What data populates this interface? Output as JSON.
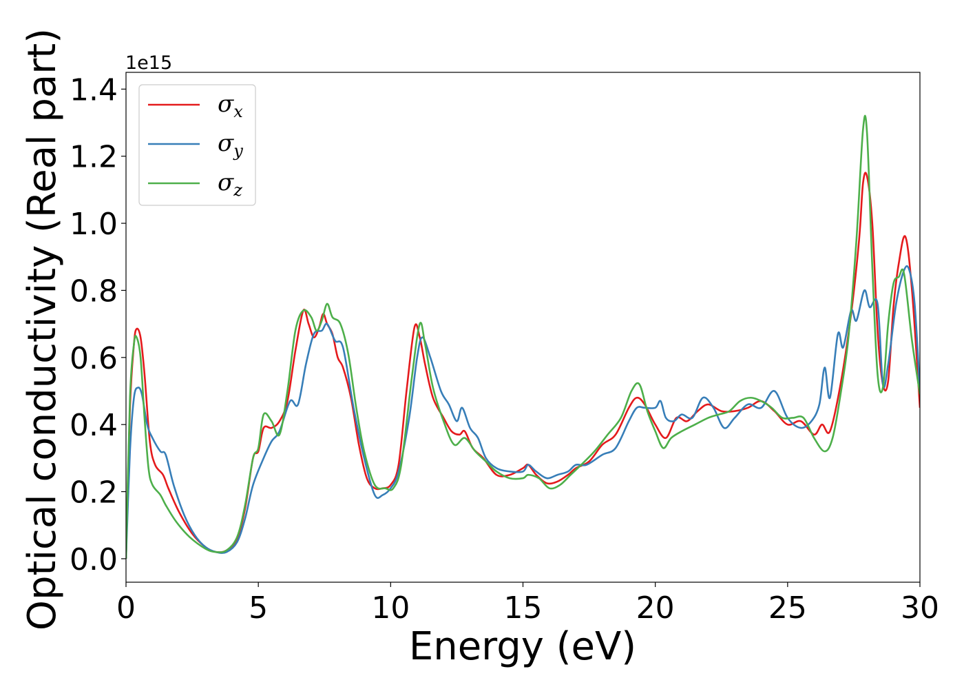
{
  "chart_data": {
    "type": "line",
    "title": "",
    "xlabel": "Energy (eV)",
    "ylabel": "Optical conductivity (Real part)",
    "y_offset_label": "1e15",
    "xlim": [
      0,
      30
    ],
    "ylim": [
      -0.07,
      1.45
    ],
    "grid": false,
    "legend_position": "top-left",
    "x_ticks": [
      {
        "value": 0,
        "label": "0"
      },
      {
        "value": 5,
        "label": "5"
      },
      {
        "value": 10,
        "label": "10"
      },
      {
        "value": 15,
        "label": "15"
      },
      {
        "value": 20,
        "label": "20"
      },
      {
        "value": 25,
        "label": "25"
      },
      {
        "value": 30,
        "label": "30"
      }
    ],
    "y_ticks": [
      {
        "value": 0.0,
        "label": "0.0"
      },
      {
        "value": 0.2,
        "label": "0.2"
      },
      {
        "value": 0.4,
        "label": "0.4"
      },
      {
        "value": 0.6,
        "label": "0.6"
      },
      {
        "value": 0.8,
        "label": "0.8"
      },
      {
        "value": 1.0,
        "label": "1.0"
      },
      {
        "value": 1.2,
        "label": "1.2"
      },
      {
        "value": 1.4,
        "label": "1.4"
      }
    ],
    "series": [
      {
        "name": "σ",
        "subscript": "x",
        "color": "#e41a1c",
        "x": [
          0,
          0.15,
          0.3,
          0.4,
          0.55,
          0.7,
          0.9,
          1.1,
          1.4,
          1.6,
          2.0,
          2.5,
          3.0,
          3.4,
          3.8,
          4.2,
          4.5,
          4.8,
          5.0,
          5.2,
          5.5,
          5.8,
          6.1,
          6.4,
          6.7,
          6.9,
          7.1,
          7.3,
          7.45,
          7.6,
          7.8,
          8.0,
          8.2,
          8.5,
          8.8,
          9.1,
          9.4,
          9.7,
          10.0,
          10.3,
          10.6,
          10.9,
          11.1,
          11.3,
          11.6,
          12.0,
          12.3,
          12.6,
          12.8,
          13.1,
          13.5,
          14.0,
          14.5,
          15.0,
          15.2,
          15.5,
          15.9,
          16.3,
          16.7,
          17.0,
          17.5,
          18.0,
          18.5,
          19.0,
          19.3,
          19.6,
          20.0,
          20.4,
          20.8,
          21.2,
          21.6,
          22.0,
          22.5,
          23.0,
          23.5,
          24.0,
          24.5,
          25.0,
          25.5,
          26.0,
          26.3,
          26.6,
          27.0,
          27.4,
          27.7,
          27.85,
          28.0,
          28.2,
          28.4,
          28.6,
          28.8,
          29.0,
          29.2,
          29.45,
          29.7,
          30.0
        ],
        "y": [
          0.0,
          0.45,
          0.64,
          0.685,
          0.66,
          0.55,
          0.35,
          0.28,
          0.25,
          0.21,
          0.14,
          0.075,
          0.035,
          0.02,
          0.025,
          0.06,
          0.15,
          0.3,
          0.32,
          0.39,
          0.39,
          0.41,
          0.47,
          0.62,
          0.74,
          0.7,
          0.66,
          0.69,
          0.73,
          0.7,
          0.67,
          0.6,
          0.57,
          0.48,
          0.34,
          0.24,
          0.21,
          0.21,
          0.22,
          0.28,
          0.5,
          0.69,
          0.66,
          0.58,
          0.48,
          0.42,
          0.38,
          0.37,
          0.38,
          0.33,
          0.3,
          0.25,
          0.25,
          0.27,
          0.28,
          0.25,
          0.225,
          0.23,
          0.25,
          0.27,
          0.29,
          0.34,
          0.37,
          0.45,
          0.48,
          0.46,
          0.4,
          0.36,
          0.42,
          0.41,
          0.44,
          0.46,
          0.44,
          0.44,
          0.45,
          0.47,
          0.44,
          0.4,
          0.41,
          0.37,
          0.4,
          0.38,
          0.52,
          0.73,
          0.95,
          1.12,
          1.14,
          1.0,
          0.68,
          0.52,
          0.53,
          0.75,
          0.88,
          0.96,
          0.8,
          0.45
        ]
      },
      {
        "name": "σ",
        "subscript": "y",
        "color": "#377eb8",
        "x": [
          0,
          0.15,
          0.3,
          0.45,
          0.6,
          0.8,
          1.0,
          1.3,
          1.5,
          1.8,
          2.2,
          2.6,
          3.0,
          3.4,
          3.8,
          4.2,
          4.5,
          4.8,
          5.2,
          5.5,
          5.8,
          6.2,
          6.5,
          6.8,
          7.1,
          7.4,
          7.6,
          7.9,
          8.2,
          8.6,
          9.0,
          9.4,
          9.7,
          10.0,
          10.3,
          10.7,
          11.0,
          11.2,
          11.5,
          11.9,
          12.2,
          12.5,
          12.7,
          13.0,
          13.3,
          13.6,
          14.0,
          14.5,
          15.0,
          15.2,
          15.5,
          15.9,
          16.3,
          16.7,
          17.0,
          17.4,
          18.0,
          18.5,
          19.0,
          19.3,
          19.6,
          20.0,
          20.2,
          20.4,
          20.7,
          21.0,
          21.4,
          21.8,
          22.2,
          22.6,
          23.0,
          23.5,
          24.0,
          24.5,
          25.0,
          25.5,
          25.9,
          26.2,
          26.4,
          26.6,
          26.9,
          27.1,
          27.4,
          27.6,
          27.9,
          28.1,
          28.4,
          28.6,
          28.8,
          29.1,
          29.4,
          29.6,
          29.8,
          30.0
        ],
        "y": [
          0.0,
          0.32,
          0.48,
          0.51,
          0.49,
          0.4,
          0.36,
          0.32,
          0.31,
          0.22,
          0.13,
          0.07,
          0.035,
          0.02,
          0.02,
          0.05,
          0.12,
          0.22,
          0.3,
          0.35,
          0.38,
          0.47,
          0.46,
          0.58,
          0.67,
          0.68,
          0.7,
          0.65,
          0.63,
          0.45,
          0.3,
          0.19,
          0.19,
          0.21,
          0.26,
          0.42,
          0.6,
          0.66,
          0.6,
          0.5,
          0.46,
          0.41,
          0.45,
          0.39,
          0.36,
          0.3,
          0.27,
          0.26,
          0.26,
          0.28,
          0.26,
          0.24,
          0.25,
          0.26,
          0.28,
          0.28,
          0.31,
          0.33,
          0.41,
          0.45,
          0.45,
          0.45,
          0.47,
          0.42,
          0.41,
          0.43,
          0.42,
          0.48,
          0.45,
          0.39,
          0.42,
          0.46,
          0.45,
          0.5,
          0.42,
          0.39,
          0.41,
          0.46,
          0.57,
          0.48,
          0.67,
          0.63,
          0.74,
          0.71,
          0.8,
          0.75,
          0.76,
          0.52,
          0.58,
          0.76,
          0.86,
          0.86,
          0.76,
          0.5
        ]
      },
      {
        "name": "σ",
        "subscript": "z",
        "color": "#4daf4a",
        "x": [
          0,
          0.15,
          0.3,
          0.4,
          0.55,
          0.7,
          0.85,
          1.0,
          1.3,
          1.5,
          1.9,
          2.4,
          3.0,
          3.4,
          3.8,
          4.2,
          4.5,
          4.8,
          5.0,
          5.2,
          5.5,
          5.8,
          6.1,
          6.4,
          6.7,
          7.0,
          7.2,
          7.4,
          7.6,
          7.8,
          8.1,
          8.4,
          8.7,
          9.0,
          9.4,
          9.8,
          10.1,
          10.4,
          10.8,
          11.1,
          11.3,
          11.6,
          12.0,
          12.4,
          12.8,
          13.2,
          13.6,
          14.0,
          14.5,
          15.0,
          15.2,
          15.6,
          16.0,
          16.4,
          16.8,
          17.2,
          17.7,
          18.2,
          18.7,
          19.1,
          19.4,
          19.7,
          20.0,
          20.3,
          20.6,
          21.0,
          21.5,
          22.0,
          22.4,
          22.8,
          23.2,
          23.6,
          24.0,
          24.4,
          24.8,
          25.2,
          25.6,
          26.0,
          26.4,
          26.7,
          27.0,
          27.3,
          27.6,
          27.85,
          28.0,
          28.2,
          28.4,
          28.6,
          28.8,
          29.0,
          29.2,
          29.4,
          29.7,
          30.0
        ],
        "y": [
          0.0,
          0.48,
          0.64,
          0.66,
          0.6,
          0.42,
          0.27,
          0.22,
          0.19,
          0.16,
          0.11,
          0.065,
          0.03,
          0.02,
          0.025,
          0.065,
          0.16,
          0.3,
          0.33,
          0.43,
          0.41,
          0.37,
          0.5,
          0.68,
          0.74,
          0.72,
          0.68,
          0.71,
          0.76,
          0.72,
          0.7,
          0.61,
          0.45,
          0.32,
          0.22,
          0.21,
          0.21,
          0.28,
          0.54,
          0.7,
          0.64,
          0.51,
          0.41,
          0.34,
          0.36,
          0.32,
          0.29,
          0.26,
          0.24,
          0.24,
          0.25,
          0.24,
          0.21,
          0.22,
          0.25,
          0.28,
          0.32,
          0.37,
          0.42,
          0.5,
          0.52,
          0.44,
          0.38,
          0.33,
          0.36,
          0.38,
          0.4,
          0.42,
          0.43,
          0.44,
          0.47,
          0.48,
          0.47,
          0.45,
          0.42,
          0.42,
          0.42,
          0.36,
          0.32,
          0.36,
          0.49,
          0.66,
          0.95,
          1.28,
          1.27,
          0.87,
          0.55,
          0.51,
          0.7,
          0.82,
          0.84,
          0.85,
          0.65,
          0.49
        ]
      }
    ]
  }
}
